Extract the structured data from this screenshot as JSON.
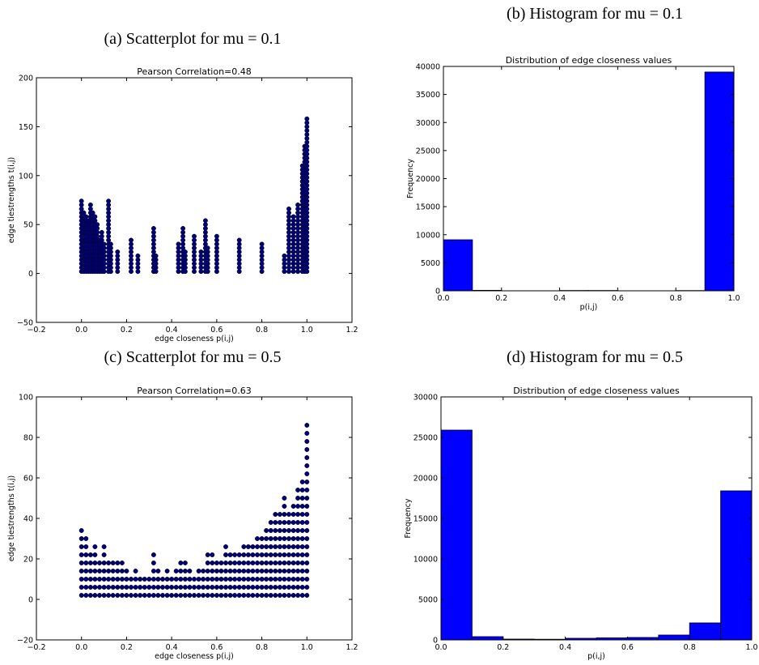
{
  "captions": {
    "a": "(a) Scatterplot for mu = 0.1",
    "b": "(b) Histogram for mu = 0.1",
    "c": "(c) Scatterplot for mu = 0.5",
    "d": "(d) Histogram for mu = 0.5"
  },
  "chart_data": [
    {
      "id": "a",
      "type": "scatter",
      "title": "Pearson Correlation=0.48",
      "xlabel": "edge closeness p(i,j)",
      "ylabel": "edge tiestrengths t(i,j)",
      "xlim": [
        -0.2,
        1.2
      ],
      "ylim": [
        -50,
        200
      ],
      "xticks": [
        -0.2,
        0.0,
        0.2,
        0.4,
        0.6,
        0.8,
        1.0,
        1.2
      ],
      "yticks": [
        -50,
        0,
        50,
        100,
        150,
        200
      ],
      "marker_color": "#00007f",
      "columns": [
        {
          "x": 0.0,
          "ymax": 74,
          "step": 4
        },
        {
          "x": 0.01,
          "ymax": 62,
          "step": 4
        },
        {
          "x": 0.02,
          "ymax": 58,
          "step": 4
        },
        {
          "x": 0.03,
          "ymax": 54,
          "step": 4
        },
        {
          "x": 0.04,
          "ymax": 70,
          "step": 4
        },
        {
          "x": 0.05,
          "ymax": 62,
          "step": 4
        },
        {
          "x": 0.06,
          "ymax": 58,
          "step": 4
        },
        {
          "x": 0.07,
          "ymax": 50,
          "step": 4
        },
        {
          "x": 0.08,
          "ymax": 34,
          "step": 4
        },
        {
          "x": 0.09,
          "ymax": 42,
          "step": 4
        },
        {
          "x": 0.1,
          "ymax": 30,
          "step": 4
        },
        {
          "x": 0.12,
          "ymax": 74,
          "step": 4
        },
        {
          "x": 0.13,
          "ymax": 30,
          "step": 4
        },
        {
          "x": 0.16,
          "ymax": 22,
          "step": 4
        },
        {
          "x": 0.22,
          "ymax": 34,
          "step": 4
        },
        {
          "x": 0.25,
          "ymax": 18,
          "step": 4
        },
        {
          "x": 0.32,
          "ymax": 46,
          "step": 4
        },
        {
          "x": 0.33,
          "ymax": 18,
          "step": 4
        },
        {
          "x": 0.43,
          "ymax": 30,
          "step": 4
        },
        {
          "x": 0.45,
          "ymax": 46,
          "step": 4
        },
        {
          "x": 0.46,
          "ymax": 22,
          "step": 4
        },
        {
          "x": 0.5,
          "ymax": 38,
          "step": 4
        },
        {
          "x": 0.53,
          "ymax": 22,
          "step": 4
        },
        {
          "x": 0.55,
          "ymax": 54,
          "step": 4
        },
        {
          "x": 0.56,
          "ymax": 26,
          "step": 4
        },
        {
          "x": 0.6,
          "ymax": 38,
          "step": 4
        },
        {
          "x": 0.7,
          "ymax": 34,
          "step": 4
        },
        {
          "x": 0.8,
          "ymax": 30,
          "step": 4
        },
        {
          "x": 0.9,
          "ymax": 18,
          "step": 4
        },
        {
          "x": 0.92,
          "ymax": 66,
          "step": 4
        },
        {
          "x": 0.94,
          "ymax": 58,
          "step": 4
        },
        {
          "x": 0.96,
          "ymax": 70,
          "step": 4
        },
        {
          "x": 0.98,
          "ymax": 110,
          "step": 4
        },
        {
          "x": 0.99,
          "ymax": 130,
          "step": 4
        },
        {
          "x": 1.0,
          "ymax": 158,
          "step": 4
        }
      ]
    },
    {
      "id": "b",
      "type": "bar",
      "title": "Distribution of edge closeness values",
      "xlabel": "p(i,j)",
      "ylabel": "Frequency",
      "xlim": [
        0.0,
        1.0
      ],
      "ylim": [
        0,
        40000
      ],
      "xticks": [
        0.0,
        0.2,
        0.4,
        0.6,
        0.8,
        1.0
      ],
      "yticks": [
        0,
        5000,
        10000,
        15000,
        20000,
        25000,
        30000,
        35000,
        40000
      ],
      "bar_color": "#0000ff",
      "bin_edges": [
        0.0,
        0.1,
        0.2,
        0.3,
        0.4,
        0.5,
        0.6,
        0.7,
        0.8,
        0.9,
        1.0
      ],
      "values": [
        9100,
        80,
        20,
        20,
        60,
        60,
        20,
        20,
        40,
        39000
      ]
    },
    {
      "id": "c",
      "type": "scatter",
      "title": "Pearson Correlation=0.63",
      "xlabel": "edge closeness p(i,j)",
      "ylabel": "edge tiestrengths t(i,j)",
      "xlim": [
        -0.2,
        1.2
      ],
      "ylim": [
        -20,
        100
      ],
      "xticks": [
        -0.2,
        0.0,
        0.2,
        0.4,
        0.6,
        0.8,
        1.0,
        1.2
      ],
      "yticks": [
        -20,
        0,
        20,
        40,
        60,
        80,
        100
      ],
      "marker_color": "#00007f",
      "columns": [
        {
          "x": 0.0,
          "ymax": 34,
          "step": 4
        },
        {
          "x": 0.02,
          "ymax": 30,
          "step": 4
        },
        {
          "x": 0.04,
          "ymax": 22,
          "step": 4
        },
        {
          "x": 0.06,
          "ymax": 26,
          "step": 4
        },
        {
          "x": 0.08,
          "ymax": 18,
          "step": 4
        },
        {
          "x": 0.1,
          "ymax": 26,
          "step": 4
        },
        {
          "x": 0.12,
          "ymax": 18,
          "step": 4
        },
        {
          "x": 0.14,
          "ymax": 18,
          "step": 4
        },
        {
          "x": 0.16,
          "ymax": 18,
          "step": 4
        },
        {
          "x": 0.18,
          "ymax": 18,
          "step": 4
        },
        {
          "x": 0.2,
          "ymax": 14,
          "step": 4
        },
        {
          "x": 0.22,
          "ymax": 10,
          "step": 4
        },
        {
          "x": 0.24,
          "ymax": 14,
          "step": 4
        },
        {
          "x": 0.26,
          "ymax": 10,
          "step": 4
        },
        {
          "x": 0.28,
          "ymax": 10,
          "step": 4
        },
        {
          "x": 0.3,
          "ymax": 10,
          "step": 4
        },
        {
          "x": 0.32,
          "ymax": 22,
          "step": 4
        },
        {
          "x": 0.34,
          "ymax": 14,
          "step": 4
        },
        {
          "x": 0.36,
          "ymax": 10,
          "step": 4
        },
        {
          "x": 0.38,
          "ymax": 14,
          "step": 4
        },
        {
          "x": 0.4,
          "ymax": 10,
          "step": 4
        },
        {
          "x": 0.42,
          "ymax": 14,
          "step": 4
        },
        {
          "x": 0.44,
          "ymax": 18,
          "step": 4
        },
        {
          "x": 0.46,
          "ymax": 18,
          "step": 4
        },
        {
          "x": 0.48,
          "ymax": 14,
          "step": 4
        },
        {
          "x": 0.5,
          "ymax": 10,
          "step": 4
        },
        {
          "x": 0.52,
          "ymax": 14,
          "step": 4
        },
        {
          "x": 0.54,
          "ymax": 14,
          "step": 4
        },
        {
          "x": 0.56,
          "ymax": 22,
          "step": 4
        },
        {
          "x": 0.58,
          "ymax": 22,
          "step": 4
        },
        {
          "x": 0.6,
          "ymax": 18,
          "step": 4
        },
        {
          "x": 0.62,
          "ymax": 18,
          "step": 4
        },
        {
          "x": 0.64,
          "ymax": 26,
          "step": 4
        },
        {
          "x": 0.66,
          "ymax": 22,
          "step": 4
        },
        {
          "x": 0.68,
          "ymax": 22,
          "step": 4
        },
        {
          "x": 0.7,
          "ymax": 22,
          "step": 4
        },
        {
          "x": 0.72,
          "ymax": 26,
          "step": 4
        },
        {
          "x": 0.74,
          "ymax": 26,
          "step": 4
        },
        {
          "x": 0.76,
          "ymax": 26,
          "step": 4
        },
        {
          "x": 0.78,
          "ymax": 30,
          "step": 4
        },
        {
          "x": 0.8,
          "ymax": 30,
          "step": 4
        },
        {
          "x": 0.82,
          "ymax": 34,
          "step": 4
        },
        {
          "x": 0.84,
          "ymax": 38,
          "step": 4
        },
        {
          "x": 0.86,
          "ymax": 42,
          "step": 4
        },
        {
          "x": 0.88,
          "ymax": 42,
          "step": 4
        },
        {
          "x": 0.9,
          "ymax": 50,
          "step": 4
        },
        {
          "x": 0.92,
          "ymax": 42,
          "step": 4
        },
        {
          "x": 0.94,
          "ymax": 46,
          "step": 4
        },
        {
          "x": 0.96,
          "ymax": 54,
          "step": 4
        },
        {
          "x": 0.98,
          "ymax": 58,
          "step": 4
        },
        {
          "x": 1.0,
          "ymax": 86,
          "step": 4
        }
      ]
    },
    {
      "id": "d",
      "type": "bar",
      "title": "Distribution of edge closeness values",
      "xlabel": "p(i,j)",
      "ylabel": "Frequency",
      "xlim": [
        0.0,
        1.0
      ],
      "ylim": [
        0,
        30000
      ],
      "xticks": [
        0.0,
        0.2,
        0.4,
        0.6,
        0.8,
        1.0
      ],
      "yticks": [
        0,
        5000,
        10000,
        15000,
        20000,
        25000,
        30000
      ],
      "bar_color": "#0000ff",
      "bin_edges": [
        0.0,
        0.1,
        0.2,
        0.3,
        0.4,
        0.5,
        0.6,
        0.7,
        0.8,
        0.9,
        1.0
      ],
      "values": [
        25900,
        400,
        100,
        80,
        200,
        250,
        300,
        600,
        2100,
        18400
      ]
    }
  ]
}
